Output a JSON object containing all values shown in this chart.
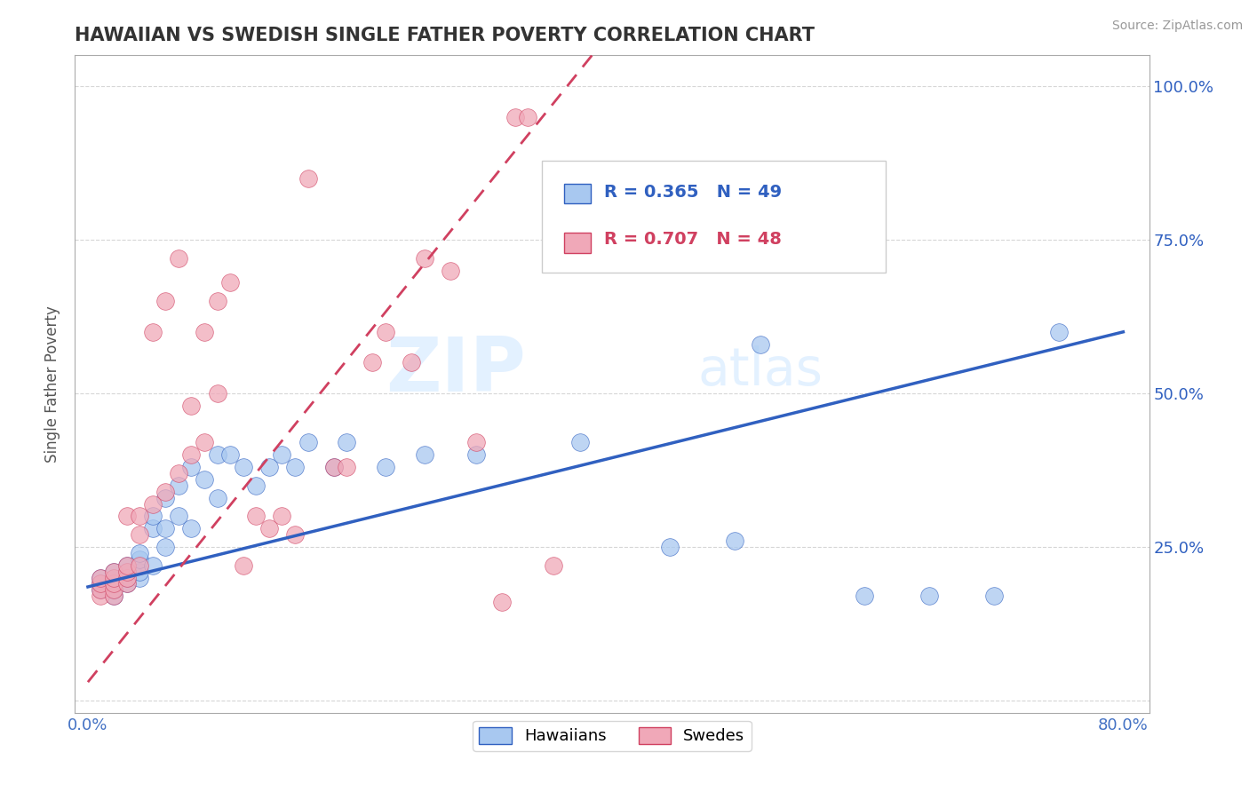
{
  "title": "HAWAIIAN VS SWEDISH SINGLE FATHER POVERTY CORRELATION CHART",
  "source": "Source: ZipAtlas.com",
  "ylabel": "Single Father Poverty",
  "xlim": [
    -0.01,
    0.82
  ],
  "ylim": [
    -0.02,
    1.05
  ],
  "R_hawaiian": 0.365,
  "N_hawaiian": 49,
  "R_swedish": 0.707,
  "N_swedish": 48,
  "hawaiian_color": "#A8C8F0",
  "swedish_color": "#F0A8B8",
  "trend_hawaiian_color": "#3060C0",
  "trend_swedish_color": "#D04060",
  "watermark_zip": "ZIP",
  "watermark_atlas": "atlas",
  "legend_labels": [
    "Hawaiians",
    "Swedes"
  ],
  "hawaiian_x": [
    0.01,
    0.01,
    0.01,
    0.02,
    0.02,
    0.02,
    0.02,
    0.02,
    0.03,
    0.03,
    0.03,
    0.03,
    0.04,
    0.04,
    0.04,
    0.04,
    0.05,
    0.05,
    0.05,
    0.06,
    0.06,
    0.06,
    0.07,
    0.07,
    0.08,
    0.08,
    0.09,
    0.1,
    0.1,
    0.11,
    0.12,
    0.13,
    0.14,
    0.15,
    0.16,
    0.17,
    0.19,
    0.2,
    0.23,
    0.26,
    0.3,
    0.38,
    0.45,
    0.5,
    0.52,
    0.6,
    0.65,
    0.7,
    0.75
  ],
  "hawaiian_y": [
    0.18,
    0.19,
    0.2,
    0.17,
    0.18,
    0.19,
    0.2,
    0.21,
    0.19,
    0.2,
    0.21,
    0.22,
    0.2,
    0.21,
    0.23,
    0.24,
    0.22,
    0.28,
    0.3,
    0.25,
    0.28,
    0.33,
    0.3,
    0.35,
    0.28,
    0.38,
    0.36,
    0.33,
    0.4,
    0.4,
    0.38,
    0.35,
    0.38,
    0.4,
    0.38,
    0.42,
    0.38,
    0.42,
    0.38,
    0.4,
    0.4,
    0.42,
    0.25,
    0.26,
    0.58,
    0.17,
    0.17,
    0.17,
    0.6
  ],
  "swedish_x": [
    0.01,
    0.01,
    0.01,
    0.01,
    0.02,
    0.02,
    0.02,
    0.02,
    0.02,
    0.03,
    0.03,
    0.03,
    0.03,
    0.03,
    0.04,
    0.04,
    0.04,
    0.05,
    0.05,
    0.06,
    0.06,
    0.07,
    0.07,
    0.08,
    0.08,
    0.09,
    0.09,
    0.1,
    0.1,
    0.11,
    0.12,
    0.13,
    0.14,
    0.15,
    0.16,
    0.17,
    0.19,
    0.2,
    0.22,
    0.23,
    0.25,
    0.26,
    0.28,
    0.3,
    0.32,
    0.33,
    0.34,
    0.36
  ],
  "swedish_y": [
    0.17,
    0.18,
    0.19,
    0.2,
    0.17,
    0.18,
    0.19,
    0.2,
    0.21,
    0.19,
    0.2,
    0.21,
    0.22,
    0.3,
    0.22,
    0.27,
    0.3,
    0.32,
    0.6,
    0.34,
    0.65,
    0.37,
    0.72,
    0.4,
    0.48,
    0.42,
    0.6,
    0.5,
    0.65,
    0.68,
    0.22,
    0.3,
    0.28,
    0.3,
    0.27,
    0.85,
    0.38,
    0.38,
    0.55,
    0.6,
    0.55,
    0.72,
    0.7,
    0.42,
    0.16,
    0.95,
    0.95,
    0.22
  ]
}
